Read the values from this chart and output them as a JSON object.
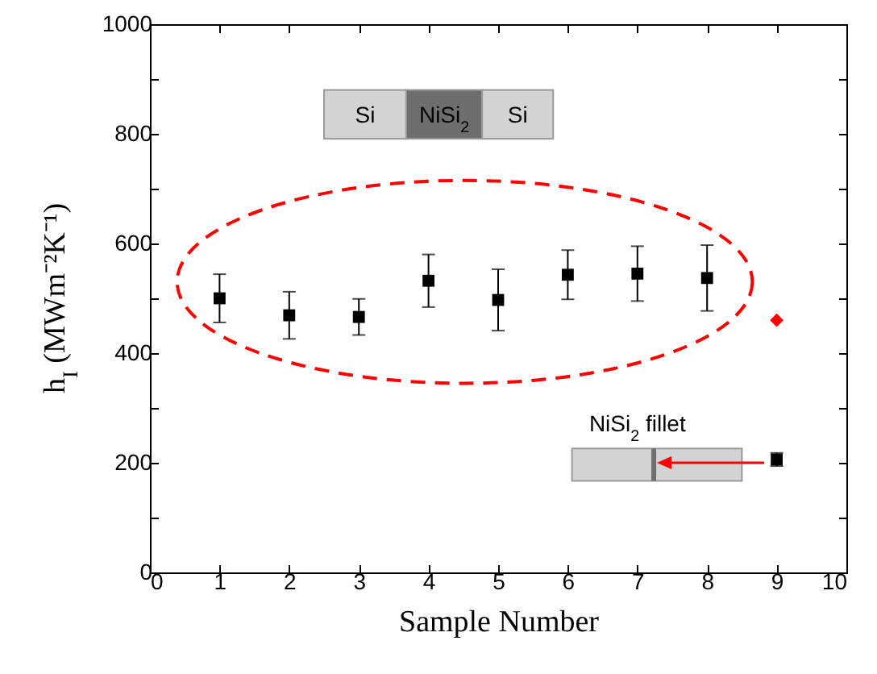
{
  "chart_data": {
    "type": "scatter",
    "xlabel": "Sample Number",
    "ylabel": "h$_{I}$ (MWm⁻²K⁻¹)",
    "xlim": [
      0,
      10
    ],
    "xticks": [
      0,
      1,
      2,
      3,
      4,
      5,
      6,
      7,
      8,
      9,
      10
    ],
    "ylim": [
      0,
      1000
    ],
    "yticks": [
      0,
      {
        "value": 100,
        "label": null
      },
      200,
      {
        "value": 300,
        "label": null
      },
      400,
      {
        "value": 500,
        "label": null
      },
      600,
      {
        "value": 700,
        "label": null
      },
      800,
      {
        "value": 900,
        "label": null
      },
      1000
    ],
    "grid": false,
    "series": [
      {
        "color": "#000000",
        "marker": "square",
        "x": [
          1,
          2,
          3,
          4,
          5,
          6,
          7,
          8,
          9
        ],
        "values": [
          500,
          469,
          466,
          532,
          497,
          543,
          545,
          537,
          206
        ],
        "errors": [
          44,
          43,
          33,
          48,
          56,
          45,
          50,
          60,
          12
        ]
      },
      {
        "color": "#ff0000",
        "marker": "diamond",
        "x": [
          9
        ],
        "values": [
          460
        ]
      }
    ],
    "annotations": [
      "Si",
      "NiSi$_{2}$",
      "Si",
      "NiSi$_{2}$ fillet"
    ]
  }
}
